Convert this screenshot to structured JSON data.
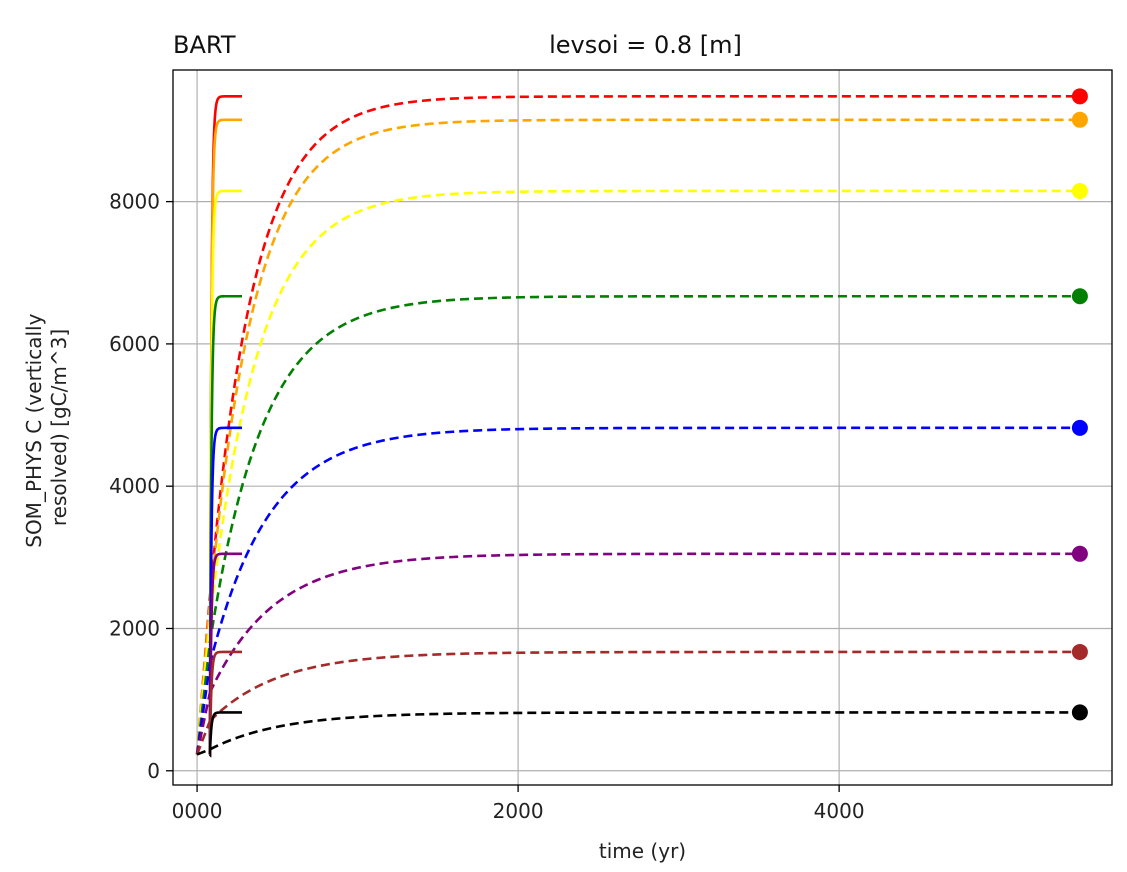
{
  "chart_data": {
    "type": "line",
    "title_left": "BART",
    "title_center": "levsoi = 0.8 [m]",
    "xlabel": "time (yr)",
    "ylabel_lines": [
      "SOM_PHYS C (vertically",
      "resolved) [gC/m^3]"
    ],
    "xlim": [
      -150,
      5700
    ],
    "ylim": [
      -200,
      9850
    ],
    "xticks": [
      0,
      2000,
      4000
    ],
    "xtick_labels": [
      "0000",
      "2000",
      "4000"
    ],
    "yticks": [
      0,
      2000,
      4000,
      6000,
      8000
    ],
    "ytick_labels": [
      "0",
      "2000",
      "4000",
      "6000",
      "8000"
    ],
    "grid": true,
    "initial_value": 230,
    "spinup_start_year": 0,
    "spinup_end_year": 80,
    "fast_run_end_year": 280,
    "full_run_end_year": 5500,
    "series": [
      {
        "color": "#ff0000",
        "spinup_value": 2450,
        "equilibrium": 9480
      },
      {
        "color": "#ffa500",
        "spinup_value": 2350,
        "equilibrium": 9150
      },
      {
        "color": "#ffff00",
        "spinup_value": 2100,
        "equilibrium": 8150
      },
      {
        "color": "#008000",
        "spinup_value": 1800,
        "equilibrium": 6670
      },
      {
        "color": "#0000ff",
        "spinup_value": 1500,
        "equilibrium": 4820
      },
      {
        "color": "#800080",
        "spinup_value": 1100,
        "equilibrium": 3050
      },
      {
        "color": "#a52a2a",
        "spinup_value": 700,
        "equilibrium": 1670
      },
      {
        "color": "#000000",
        "spinup_value": 300,
        "equilibrium": 820
      }
    ]
  }
}
